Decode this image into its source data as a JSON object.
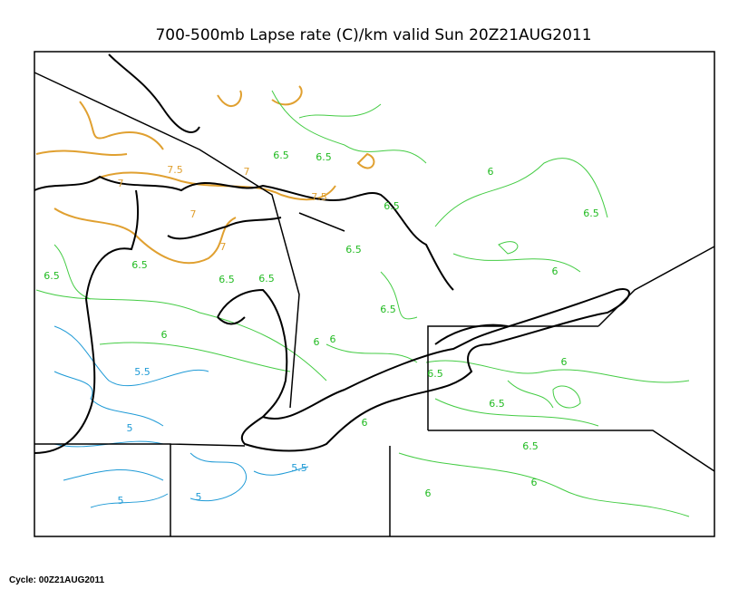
{
  "title": "700-500mb Lapse rate (C)/km valid Sun 20Z21AUG2011",
  "cycle": "Cycle: 00Z21AUG2011",
  "contour_labels": [
    "7.5",
    "7",
    "7",
    "7",
    "7",
    "7.5",
    "6.5",
    "6.5",
    "6",
    "6.5",
    "6.5",
    "6.5",
    "6",
    "6.5",
    "6.5",
    "6.5",
    "6.5",
    "6.5",
    "6",
    "6",
    "6",
    "6",
    "6.5",
    "6.5",
    "6",
    "6.5",
    "6",
    "6",
    "5.5",
    "5",
    "5.5",
    "5",
    "5"
  ]
}
